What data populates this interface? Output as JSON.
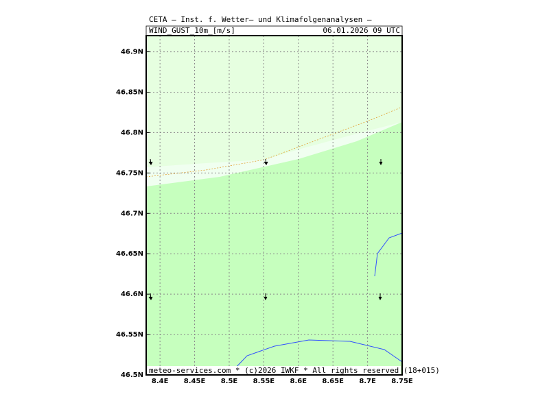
{
  "header": {
    "title": "CETA – Inst. f. Wetter– und Klimafolgenanalysen –",
    "field": "WIND_GUST_10m_[m/s]",
    "time": "06.01.2026  09  UTC"
  },
  "map": {
    "xlim": [
      8.38,
      8.75
    ],
    "ylim": [
      46.5,
      46.92
    ],
    "xticks": [
      {
        "value": 8.4,
        "label": "8.4E"
      },
      {
        "value": 8.45,
        "label": "8.45E"
      },
      {
        "value": 8.5,
        "label": "8.5E"
      },
      {
        "value": 8.55,
        "label": "8.55E"
      },
      {
        "value": 8.6,
        "label": "8.6E"
      },
      {
        "value": 8.65,
        "label": "8.65E"
      },
      {
        "value": 8.7,
        "label": "8.7E"
      },
      {
        "value": 8.75,
        "label": "8.75E"
      }
    ],
    "yticks": [
      {
        "value": 46.5,
        "label": "46.5N"
      },
      {
        "value": 46.55,
        "label": "46.55N"
      },
      {
        "value": 46.6,
        "label": "46.6N"
      },
      {
        "value": 46.65,
        "label": "46.65N"
      },
      {
        "value": 46.7,
        "label": "46.7N"
      },
      {
        "value": 46.75,
        "label": "46.75N"
      },
      {
        "value": 46.8,
        "label": "46.8N"
      },
      {
        "value": 46.85,
        "label": "46.85N"
      },
      {
        "value": 46.9,
        "label": "46.9N"
      }
    ]
  },
  "footer": "meteo-services.com * (c)2026 IWKF * All rights reserved (18+015)"
}
